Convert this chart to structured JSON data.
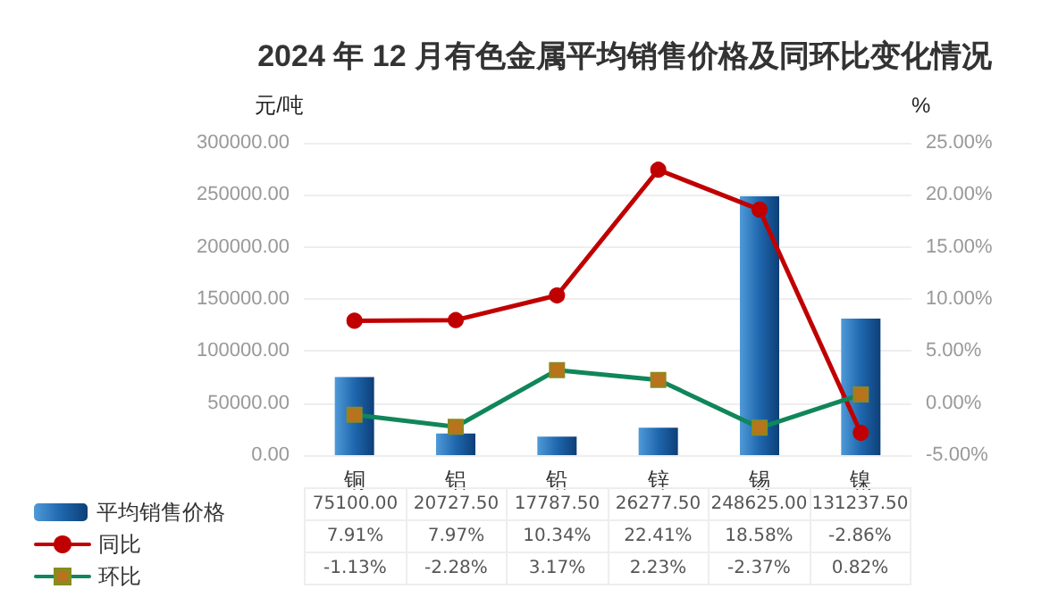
{
  "chart_data": {
    "type": "bar",
    "title": "2024 年 12 月有色金属平均销售价格及同环比变化情况",
    "ylabel": "元/吨",
    "y2label": "%",
    "categories": [
      "铜",
      "铝",
      "铅",
      "锌",
      "锡",
      "镍"
    ],
    "series": [
      {
        "name": "平均销售价格",
        "color": "#1f67ae",
        "values": [
          75100.0,
          20727.5,
          17787.5,
          26277.5,
          248625.0,
          131237.5
        ],
        "value_labels": [
          "75100.00",
          "20727.50",
          "17787.50",
          "26277.50",
          "248625.00",
          "131237.50"
        ]
      },
      {
        "name": "同比",
        "type": "line",
        "axis": "y2",
        "color": "#c00000",
        "marker": "circle",
        "values": [
          7.91,
          7.97,
          10.34,
          22.41,
          18.58,
          -2.86
        ],
        "value_labels": [
          "7.91%",
          "7.97%",
          "10.34%",
          "22.41%",
          "18.58%",
          "-2.86%"
        ]
      },
      {
        "name": "环比",
        "type": "line",
        "axis": "y2",
        "color": "#10865a",
        "marker": "square",
        "values": [
          -1.13,
          -2.28,
          3.17,
          2.23,
          -2.37,
          0.82
        ],
        "value_labels": [
          "-1.13%",
          "-2.28%",
          "3.17%",
          "2.23%",
          "-2.37%",
          "0.82%"
        ]
      }
    ],
    "ylim": [
      0,
      300000
    ],
    "yticks": [
      {
        "value": 0,
        "label": "0.00"
      },
      {
        "value": 50000,
        "label": "50000.00"
      },
      {
        "value": 100000,
        "label": "100000.00"
      },
      {
        "value": 150000,
        "label": "150000.00"
      },
      {
        "value": 200000,
        "label": "200000.00"
      },
      {
        "value": 250000,
        "label": "250000.00"
      },
      {
        "value": 300000,
        "label": "300000.00"
      }
    ],
    "y2lim": [
      -5,
      25
    ],
    "y2ticks": [
      {
        "value": -5,
        "label": "-5.00%"
      },
      {
        "value": 0,
        "label": "0.00%"
      },
      {
        "value": 5,
        "label": "5.00%"
      },
      {
        "value": 10,
        "label": "10.00%"
      },
      {
        "value": 15,
        "label": "15.00%"
      },
      {
        "value": 20,
        "label": "20.00%"
      },
      {
        "value": 25,
        "label": "25.00%"
      }
    ],
    "grid": "y",
    "legend": "bottom left",
    "line_style": "solid"
  }
}
